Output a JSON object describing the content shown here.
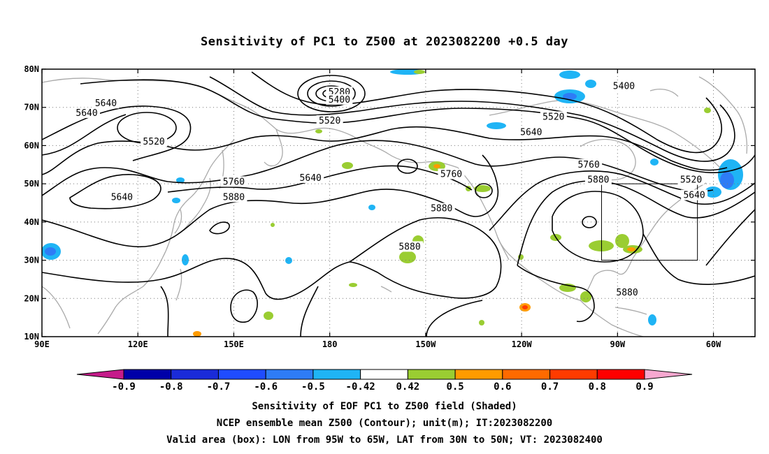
{
  "title": "Sensitivity of PC1 to Z500 at 2023082200 +0.5 day",
  "captions": [
    "Sensitivity of EOF PC1 to Z500 field (Shaded)",
    "NCEP ensemble mean Z500 (Contour); unit(m); IT:2023082200",
    "Valid area (box): LON from 95W to 65W, LAT from 30N to 50N; VT: 2023082400"
  ],
  "map": {
    "lon_labels": [
      "90E",
      "120E",
      "150E",
      "180",
      "150W",
      "120W",
      "90W",
      "60W"
    ],
    "lat_labels": [
      "10N",
      "20N",
      "30N",
      "40N",
      "50N",
      "60N",
      "70N",
      "80N"
    ],
    "lon_values": [
      90,
      120,
      150,
      180,
      210,
      240,
      270,
      300
    ],
    "lat_values": [
      10,
      20,
      30,
      40,
      50,
      60,
      70,
      80
    ],
    "lon_range": [
      90,
      313
    ],
    "lat_range": [
      10,
      80
    ],
    "valid_box": {
      "lon": [
        265,
        295
      ],
      "lat": [
        30,
        50
      ]
    },
    "contour_labels": [
      {
        "text": "5280",
        "lon": 183,
        "lat": 74
      },
      {
        "text": "5400",
        "lon": 183,
        "lat": 72
      },
      {
        "text": "5520",
        "lon": 180,
        "lat": 66.5
      },
      {
        "text": "5640",
        "lon": 110,
        "lat": 71
      },
      {
        "text": "5640",
        "lon": 104,
        "lat": 68.5
      },
      {
        "text": "5520",
        "lon": 125,
        "lat": 61
      },
      {
        "text": "5640",
        "lon": 174,
        "lat": 51.5
      },
      {
        "text": "5760",
        "lon": 150,
        "lat": 50.5
      },
      {
        "text": "5640",
        "lon": 115,
        "lat": 46.5
      },
      {
        "text": "5880",
        "lon": 150,
        "lat": 46.5
      },
      {
        "text": "5760",
        "lon": 218,
        "lat": 52.5
      },
      {
        "text": "5880",
        "lon": 215,
        "lat": 43.5
      },
      {
        "text": "5880",
        "lon": 205,
        "lat": 33.5
      },
      {
        "text": "5400",
        "lon": 272,
        "lat": 75.5
      },
      {
        "text": "5520",
        "lon": 250,
        "lat": 67.5
      },
      {
        "text": "5640",
        "lon": 243,
        "lat": 63.5
      },
      {
        "text": "5760",
        "lon": 261,
        "lat": 55
      },
      {
        "text": "5880",
        "lon": 264,
        "lat": 51
      },
      {
        "text": "5520",
        "lon": 293,
        "lat": 51
      },
      {
        "text": "5640",
        "lon": 294,
        "lat": 47
      },
      {
        "text": "5880",
        "lon": 273,
        "lat": 21.5
      }
    ]
  },
  "colorbar": {
    "labels": [
      "-0.9",
      "-0.8",
      "-0.7",
      "-0.6",
      "-0.5",
      "-0.42",
      "0.42",
      "0.5",
      "0.6",
      "0.7",
      "0.8",
      "0.9"
    ],
    "colors": [
      "#0000a8",
      "#1a2bd9",
      "#1f4cff",
      "#2e7cf6",
      "#1fb4f5",
      "#ffffff",
      "#9acd32",
      "#ff9b00",
      "#ff6a00",
      "#ff3b00",
      "#ff0000"
    ],
    "under_color": "#c51b8a",
    "over_color": "#f7a8d0"
  }
}
